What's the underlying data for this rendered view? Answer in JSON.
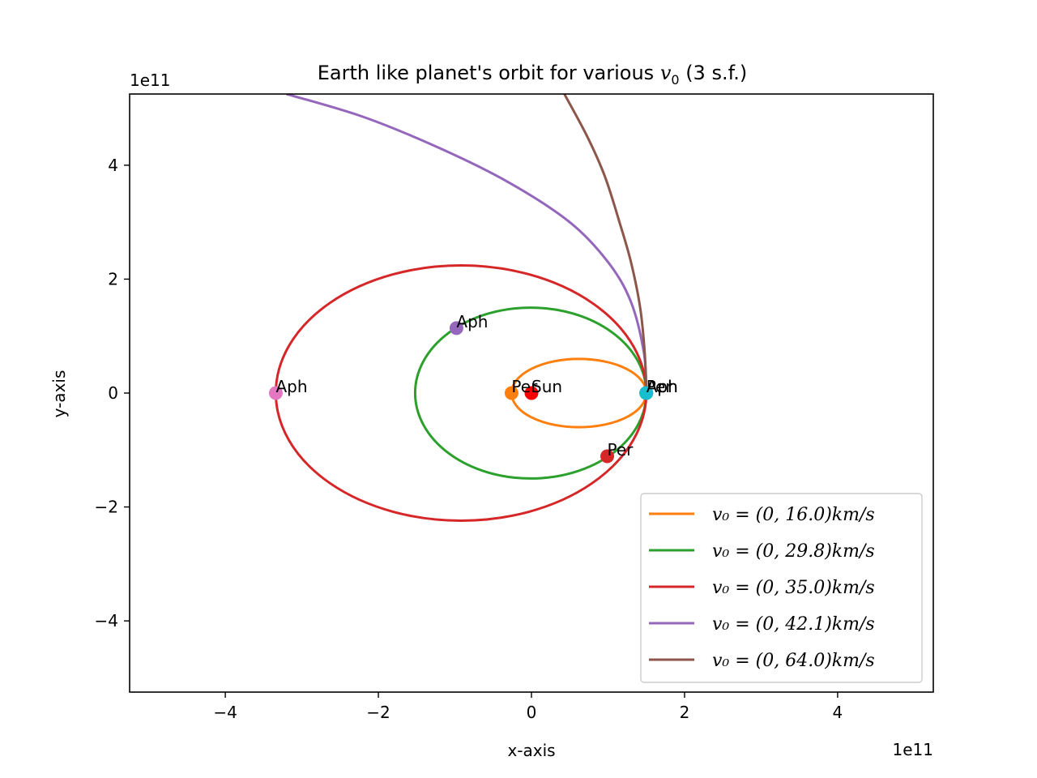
{
  "chart_data": {
    "type": "line",
    "title_main": "Earth like planet's orbit for various ",
    "title_v": "v",
    "title_sub": "0",
    "title_tail": " (3 s.f.)",
    "xlabel": "x-axis",
    "ylabel": "y-axis",
    "x_offset_label": "1e11",
    "y_offset_label": "1e11",
    "xlim": [
      -5.25,
      5.25
    ],
    "ylim": [
      -5.25,
      5.25
    ],
    "xticks": [
      -4,
      -2,
      0,
      2,
      4
    ],
    "yticks": [
      -4,
      -2,
      0,
      2,
      4
    ],
    "xtick_labels": [
      "−4",
      "−2",
      "0",
      "2",
      "4"
    ],
    "ytick_labels": [
      "−4",
      "−2",
      "0",
      "2",
      "4"
    ],
    "grid": false,
    "legend_position": "lower right",
    "series": [
      {
        "name": "v₀ = (0, 16.0)km/s",
        "color": "#ff7f0e",
        "kind": "ellipse",
        "center": [
          0.62,
          0
        ],
        "rx": 0.88,
        "ry": 0.6
      },
      {
        "name": "v₀ = (0, 29.8)km/s",
        "color": "#2ca02c",
        "kind": "ellipse",
        "center": [
          -0.01,
          0
        ],
        "rx": 1.51,
        "ry": 1.5
      },
      {
        "name": "v₀ = (0, 35.0)km/s",
        "color": "#d62728",
        "kind": "ellipse",
        "center": [
          -0.92,
          0
        ],
        "rx": 2.42,
        "ry": 2.24
      },
      {
        "name": "v₀ = (0, 42.1)km/s",
        "color": "#9467bd",
        "kind": "parabola",
        "x": [
          1.5,
          1.47,
          1.3,
          1.0,
          0.5,
          -0.3,
          -1.2,
          -2.2,
          -3.2
        ],
        "y": [
          0.0,
          0.7,
          1.6,
          2.3,
          3.0,
          3.7,
          4.3,
          4.85,
          5.25
        ]
      },
      {
        "name": "v₀ = (0, 64.0)km/s",
        "color": "#8c564b",
        "kind": "hyperbola",
        "x": [
          1.5,
          1.48,
          1.42,
          1.3,
          1.15,
          0.96,
          0.73,
          0.43
        ],
        "y": [
          0.0,
          0.7,
          1.5,
          2.3,
          3.0,
          3.8,
          4.5,
          5.25
        ]
      }
    ],
    "points": [
      {
        "label": "Sun",
        "x": 0.0,
        "y": 0.0,
        "color": "#ff0000"
      },
      {
        "label": "Per",
        "x": -0.26,
        "y": 0.0,
        "color": "#ff7f0e"
      },
      {
        "label": "Aph",
        "x": 1.5,
        "y": 0.0,
        "color": "#1f77b4"
      },
      {
        "label": "Per",
        "x": 1.5,
        "y": 0.0,
        "color": "#2ca02c"
      },
      {
        "label": "Aph",
        "x": 1.5,
        "y": 0.0,
        "color": "#17becf"
      },
      {
        "label": "Aph",
        "x": -0.98,
        "y": 1.14,
        "color": "#9467bd"
      },
      {
        "label": "Per",
        "x": 0.99,
        "y": -1.11,
        "color": "#d62728"
      },
      {
        "label": "Aph",
        "x": -3.34,
        "y": 0.0,
        "color": "#e377c2"
      }
    ]
  }
}
